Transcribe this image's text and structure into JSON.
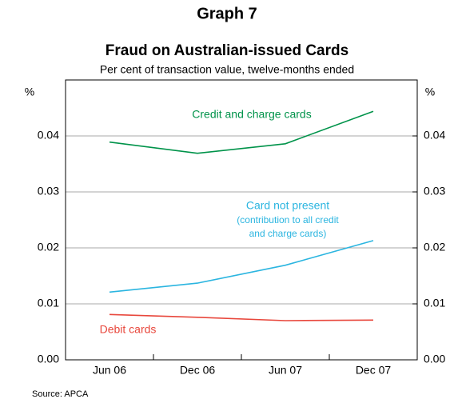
{
  "chart_data": {
    "type": "line",
    "title": "Graph 7",
    "subtitle": "Fraud on Australian-issued Cards",
    "caption": "Per cent of transaction value, twelve-months ended",
    "y_label": "%",
    "y2_label": "%",
    "source": "Source: APCA",
    "categories": [
      "Jun 06",
      "Dec 06",
      "Jun 07",
      "Dec 07"
    ],
    "series": [
      {
        "name": "Credit and charge cards",
        "color": "#00934a",
        "values": [
          0.0389,
          0.0369,
          0.0386,
          0.0444
        ]
      },
      {
        "name": "Card not present",
        "note": [
          "(contribution to all credit",
          "and charge cards)"
        ],
        "color": "#2bb5e0",
        "values": [
          0.0121,
          0.0137,
          0.0169,
          0.0213
        ]
      },
      {
        "name": "Debit cards",
        "color": "#e8473c",
        "values": [
          0.0081,
          0.0076,
          0.007,
          0.0071
        ]
      }
    ],
    "ylim": [
      0,
      0.05
    ],
    "yticks": [
      {
        "value": 0,
        "label": "0.00"
      },
      0.01,
      0.02,
      0.03,
      0.04
    ],
    "y2lim": [
      0,
      0.05
    ],
    "y2ticks": [
      {
        "value": 0,
        "label": "0.00"
      },
      0.01,
      0.02,
      0.03,
      0.04
    ],
    "grid": true
  }
}
